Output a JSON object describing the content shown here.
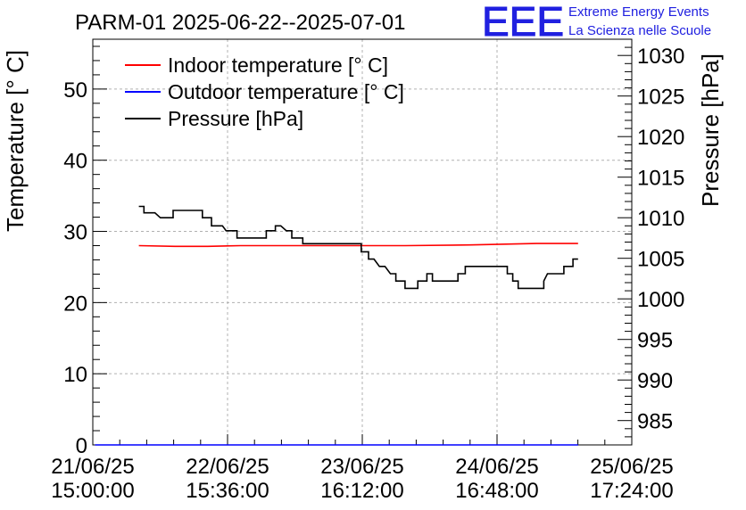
{
  "chart_data": {
    "type": "line",
    "title": "PARM-01 2025-06-22--2025-07-01",
    "ylabel": "Temperature [° C]",
    "y2label": "Pressure [hPa]",
    "logo": {
      "mark": "EEE",
      "line1": "Extreme Energy Events",
      "line2": "La Scienza nelle Scuole",
      "color": "#2020e0"
    },
    "xlim": [
      "2025-06-21 15:00:00",
      "2025-06-25 17:24:00"
    ],
    "ylim": [
      0,
      57
    ],
    "y2lim": [
      982,
      1032
    ],
    "x_ticks": [
      {
        "line1": "21/06/25",
        "line2": "15:00:00",
        "t": "2025-06-21 15:00:00"
      },
      {
        "line1": "22/06/25",
        "line2": "15:36:00",
        "t": "2025-06-22 15:36:00"
      },
      {
        "line1": "23/06/25",
        "line2": "16:12:00",
        "t": "2025-06-23 16:12:00"
      },
      {
        "line1": "24/06/25",
        "line2": "16:48:00",
        "t": "2025-06-24 16:48:00"
      },
      {
        "line1": "25/06/25",
        "line2": "17:24:00",
        "t": "2025-06-25 17:24:00"
      }
    ],
    "y_ticks": [
      0,
      10,
      20,
      30,
      40,
      50
    ],
    "y2_ticks": [
      985,
      990,
      995,
      1000,
      1005,
      1010,
      1015,
      1020,
      1025,
      1030
    ],
    "grid": true,
    "legend_position": "top-left",
    "series": [
      {
        "name": "Indoor temperature [° C]",
        "axis": "left",
        "color": "#ff0000",
        "points": [
          [
            "2025-06-21 23:24",
            28.0
          ],
          [
            "2025-06-22 06:00",
            27.9
          ],
          [
            "2025-06-22 12:00",
            27.9
          ],
          [
            "2025-06-22 18:00",
            28.0
          ],
          [
            "2025-06-23 00:00",
            28.0
          ],
          [
            "2025-06-23 12:00",
            28.0
          ],
          [
            "2025-06-24 00:00",
            28.0
          ],
          [
            "2025-06-24 12:00",
            28.1
          ],
          [
            "2025-06-25 00:00",
            28.3
          ],
          [
            "2025-06-25 07:36",
            28.3
          ]
        ]
      },
      {
        "name": "Outdoor temperature [° C]",
        "axis": "left",
        "color": "#0000ff",
        "points": [
          [
            "2025-06-21 15:24",
            0
          ],
          [
            "2025-06-25 07:36",
            0
          ]
        ]
      },
      {
        "name": "Pressure [hPa]",
        "axis": "right",
        "color": "#000000",
        "points": [
          [
            "2025-06-21 23:24",
            1011.4
          ],
          [
            "2025-06-22 00:20",
            1011.4
          ],
          [
            "2025-06-22 00:20",
            1010.6
          ],
          [
            "2025-06-22 02:20",
            1010.6
          ],
          [
            "2025-06-22 03:20",
            1010.0
          ],
          [
            "2025-06-22 05:40",
            1010.0
          ],
          [
            "2025-06-22 05:40",
            1010.9
          ],
          [
            "2025-06-22 11:00",
            1010.9
          ],
          [
            "2025-06-22 11:00",
            1010.0
          ],
          [
            "2025-06-22 12:40",
            1010.0
          ],
          [
            "2025-06-22 12:40",
            1009.0
          ],
          [
            "2025-06-22 14:40",
            1009.0
          ],
          [
            "2025-06-22 15:20",
            1008.4
          ],
          [
            "2025-06-22 17:20",
            1008.4
          ],
          [
            "2025-06-22 17:20",
            1007.5
          ],
          [
            "2025-06-22 22:40",
            1007.5
          ],
          [
            "2025-06-22 22:40",
            1008.4
          ],
          [
            "2025-06-23 00:20",
            1008.4
          ],
          [
            "2025-06-23 00:20",
            1009.0
          ],
          [
            "2025-06-23 01:20",
            1009.0
          ],
          [
            "2025-06-23 02:20",
            1008.4
          ],
          [
            "2025-06-23 03:20",
            1008.4
          ],
          [
            "2025-06-23 03:20",
            1007.5
          ],
          [
            "2025-06-23 05:20",
            1007.5
          ],
          [
            "2025-06-23 05:20",
            1006.8
          ],
          [
            "2025-06-23 16:00",
            1006.8
          ],
          [
            "2025-06-23 16:00",
            1005.8
          ],
          [
            "2025-06-23 17:20",
            1005.8
          ],
          [
            "2025-06-23 17:20",
            1004.9
          ],
          [
            "2025-06-23 18:20",
            1004.9
          ],
          [
            "2025-06-23 19:20",
            1004.0
          ],
          [
            "2025-06-23 20:20",
            1004.0
          ],
          [
            "2025-06-23 21:20",
            1003.1
          ],
          [
            "2025-06-23 22:20",
            1003.1
          ],
          [
            "2025-06-23 22:20",
            1002.2
          ],
          [
            "2025-06-24 00:00",
            1002.2
          ],
          [
            "2025-06-24 00:00",
            1001.3
          ],
          [
            "2025-06-24 02:20",
            1001.3
          ],
          [
            "2025-06-24 02:20",
            1002.2
          ],
          [
            "2025-06-24 04:00",
            1002.2
          ],
          [
            "2025-06-24 04:00",
            1003.1
          ],
          [
            "2025-06-24 05:00",
            1003.1
          ],
          [
            "2025-06-24 05:00",
            1002.2
          ],
          [
            "2025-06-24 09:40",
            1002.2
          ],
          [
            "2025-06-24 09:40",
            1003.1
          ],
          [
            "2025-06-24 11:00",
            1003.1
          ],
          [
            "2025-06-24 11:00",
            1004.0
          ],
          [
            "2025-06-24 18:40",
            1004.0
          ],
          [
            "2025-06-24 18:40",
            1003.1
          ],
          [
            "2025-06-24 19:40",
            1003.1
          ],
          [
            "2025-06-24 19:40",
            1002.2
          ],
          [
            "2025-06-24 20:40",
            1002.2
          ],
          [
            "2025-06-24 20:40",
            1001.3
          ],
          [
            "2025-06-25 01:20",
            1001.3
          ],
          [
            "2025-06-25 01:20",
            1002.2
          ],
          [
            "2025-06-25 02:00",
            1003.1
          ],
          [
            "2025-06-25 02:00",
            1003.1
          ],
          [
            "2025-06-25 02:40",
            1003.1
          ],
          [
            "2025-06-25 02:40",
            1003.1
          ],
          [
            "2025-06-25 05:00",
            1003.1
          ],
          [
            "2025-06-25 05:00",
            1004.0
          ],
          [
            "2025-06-25 06:20",
            1004.0
          ],
          [
            "2025-06-25 06:20",
            1004.0
          ],
          [
            "2025-06-25 06:40",
            1004.0
          ],
          [
            "2025-06-25 06:40",
            1004.9
          ],
          [
            "2025-06-25 07:36",
            1004.9
          ]
        ]
      }
    ]
  }
}
